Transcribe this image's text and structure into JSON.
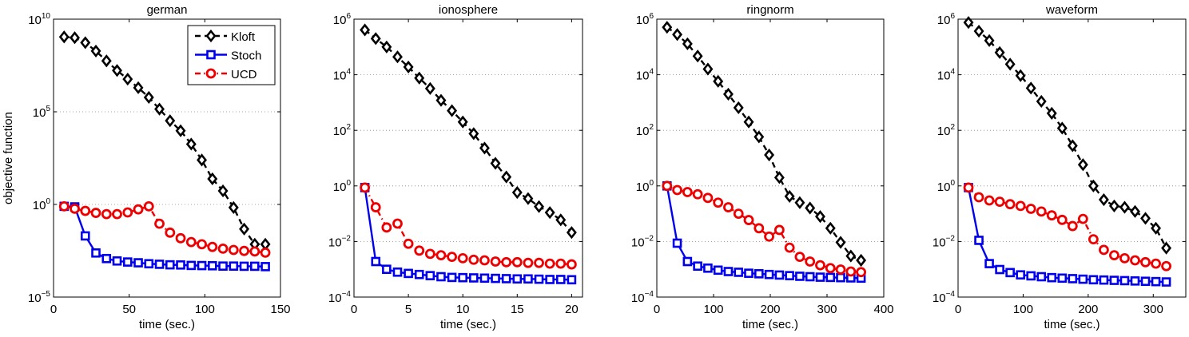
{
  "ylabel": "objective function",
  "legend": {
    "placement": "top-right",
    "entries": [
      "Kloft",
      "Stoch",
      "UCD"
    ]
  },
  "series_style": {
    "Kloft": {
      "color": "#000000",
      "marker": "diamond",
      "line": "dashed"
    },
    "Stoch": {
      "color": "#0000ee",
      "marker": "square",
      "line": "solid"
    },
    "UCD": {
      "color": "#ee0000",
      "marker": "circle",
      "line": "dash-dot"
    }
  },
  "chart_data": [
    {
      "type": "line",
      "title": "german",
      "xlabel": "time (sec.)",
      "ylabel": "objective function",
      "yscale": "log",
      "xlim": [
        0,
        150
      ],
      "ylim": [
        1e-05,
        10000000000.0
      ],
      "grid": "y-dotted",
      "xticks": [
        0,
        50,
        100,
        150
      ],
      "xticklabels": [
        "0",
        "50",
        "100",
        "150"
      ],
      "yticks": [
        1e-05,
        1,
        100000.0,
        10000000000.0
      ],
      "yticklabels": [
        "10^-5",
        "10^0",
        "10^5",
        "10^10"
      ],
      "x": [
        7,
        14,
        21,
        28,
        35,
        42,
        49,
        56,
        63,
        70,
        77,
        84,
        91,
        98,
        105,
        112,
        119,
        126,
        133,
        140
      ],
      "series": [
        {
          "name": "Kloft",
          "values": [
            1100000000.0,
            1000000000.0,
            540000000.0,
            190000000.0,
            56000000.0,
            17000000.0,
            5800000.0,
            2000000.0,
            600000.0,
            140000.0,
            33000.0,
            9500.0,
            1800.0,
            250,
            24,
            5.4,
            0.68,
            0.047,
            0.0071,
            0.0071
          ]
        },
        {
          "name": "Stoch",
          "values": [
            0.79,
            0.74,
            0.02,
            0.0024,
            0.0012,
            0.00089,
            0.00078,
            0.00071,
            0.00063,
            0.00059,
            0.00055,
            0.00054,
            0.00051,
            0.0005,
            0.00049,
            0.00047,
            0.00047,
            0.00046,
            0.00046,
            0.00044
          ]
        },
        {
          "name": "UCD",
          "values": [
            0.79,
            0.59,
            0.45,
            0.35,
            0.3,
            0.3,
            0.37,
            0.54,
            0.79,
            0.091,
            0.03,
            0.015,
            0.0093,
            0.0071,
            0.0051,
            0.0041,
            0.0035,
            0.0031,
            0.0029,
            0.0025
          ]
        }
      ]
    },
    {
      "type": "line",
      "title": "ionosphere",
      "xlabel": "time (sec.)",
      "ylabel": "",
      "yscale": "log",
      "xlim": [
        0,
        21
      ],
      "ylim": [
        0.0001,
        1000000.0
      ],
      "grid": "y-dotted",
      "xticks": [
        0,
        5,
        10,
        15,
        20
      ],
      "xticklabels": [
        "0",
        "5",
        "10",
        "15",
        "20"
      ],
      "yticks": [
        0.0001,
        0.01,
        1,
        100.0,
        10000.0,
        1000000.0
      ],
      "yticklabels": [
        "10^-4",
        "10^-2",
        "10^0",
        "10^2",
        "10^4",
        "10^6"
      ],
      "x": [
        1,
        2,
        3,
        4,
        5,
        6,
        7,
        8,
        9,
        10,
        11,
        12,
        13,
        14,
        15,
        16,
        17,
        18,
        19,
        20
      ],
      "series": [
        {
          "name": "Kloft",
          "values": [
            410000.0,
            200000.0,
            100000.0,
            44000.0,
            19000.0,
            7600.0,
            3200.0,
            1200.0,
            510,
            200,
            76,
            23,
            6.5,
            2.1,
            0.58,
            0.35,
            0.18,
            0.11,
            0.06,
            0.021
          ]
        },
        {
          "name": "Stoch",
          "values": [
            0.87,
            0.0019,
            0.001,
            0.00079,
            0.00071,
            0.00065,
            0.00059,
            0.00054,
            0.00051,
            0.0005,
            0.00049,
            0.00048,
            0.00047,
            0.00046,
            0.00045,
            0.00045,
            0.00044,
            0.00043,
            0.00043,
            0.00042
          ]
        },
        {
          "name": "UCD",
          "values": [
            0.87,
            0.17,
            0.032,
            0.044,
            0.0083,
            0.0047,
            0.0036,
            0.0032,
            0.0028,
            0.0025,
            0.0022,
            0.0021,
            0.0019,
            0.0018,
            0.0018,
            0.0017,
            0.0017,
            0.0016,
            0.0016,
            0.0015
          ]
        }
      ]
    },
    {
      "type": "line",
      "title": "ringnorm",
      "xlabel": "time (sec.)",
      "ylabel": "",
      "yscale": "log",
      "xlim": [
        0,
        400
      ],
      "ylim": [
        0.0001,
        1000000.0
      ],
      "grid": "y-dotted",
      "xticks": [
        0,
        100,
        200,
        300,
        400
      ],
      "xticklabels": [
        "0",
        "100",
        "200",
        "300",
        "400"
      ],
      "yticks": [
        0.0001,
        0.01,
        1,
        100.0,
        10000.0,
        1000000.0
      ],
      "yticklabels": [
        "10^-4",
        "10^-2",
        "10^0",
        "10^2",
        "10^4",
        "10^6"
      ],
      "x": [
        18,
        36,
        54,
        72,
        90,
        108,
        126,
        144,
        162,
        180,
        198,
        216,
        234,
        252,
        270,
        288,
        306,
        324,
        342,
        360
      ],
      "series": [
        {
          "name": "Kloft",
          "values": [
            510000.0,
            280000.0,
            130000.0,
            47000.0,
            16000.0,
            5800.0,
            2000.0,
            650,
            200,
            58,
            13,
            2.0,
            0.42,
            0.25,
            0.16,
            0.079,
            0.03,
            0.0093,
            0.003,
            0.0021
          ]
        },
        {
          "name": "Stoch",
          "values": [
            1.0,
            0.0087,
            0.0019,
            0.0013,
            0.0011,
            0.00093,
            0.00083,
            0.00078,
            0.00072,
            0.00069,
            0.00065,
            0.00062,
            0.00059,
            0.00056,
            0.00054,
            0.00052,
            0.00051,
            0.0005,
            0.00049,
            0.00048
          ]
        },
        {
          "name": "UCD",
          "values": [
            1.0,
            0.71,
            0.6,
            0.5,
            0.37,
            0.25,
            0.17,
            0.1,
            0.059,
            0.03,
            0.015,
            0.026,
            0.006,
            0.0028,
            0.0019,
            0.0014,
            0.0011,
            0.00098,
            0.00083,
            0.00079
          ]
        }
      ]
    },
    {
      "type": "line",
      "title": "waveform",
      "xlabel": "time (sec.)",
      "ylabel": "",
      "yscale": "log",
      "xlim": [
        0,
        350
      ],
      "ylim": [
        0.0001,
        1000000.0
      ],
      "grid": "y-dotted",
      "xticks": [
        0,
        100,
        200,
        300
      ],
      "xticklabels": [
        "0",
        "100",
        "200",
        "300"
      ],
      "yticks": [
        0.0001,
        0.01,
        1,
        100.0,
        10000.0,
        1000000.0
      ],
      "yticklabels": [
        "10^-4",
        "10^-2",
        "10^0",
        "10^2",
        "10^4",
        "10^6"
      ],
      "x": [
        16,
        32,
        48,
        64,
        80,
        96,
        112,
        128,
        144,
        160,
        176,
        192,
        208,
        224,
        240,
        256,
        272,
        288,
        304,
        320
      ],
      "series": [
        {
          "name": "Kloft",
          "values": [
            760000.0,
            370000.0,
            170000.0,
            63000.0,
            24000.0,
            9300.0,
            3300.0,
            1100.0,
            410,
            120,
            28,
            5.8,
            1.0,
            0.32,
            0.19,
            0.17,
            0.12,
            0.068,
            0.03,
            0.0058
          ]
        },
        {
          "name": "Stoch",
          "values": [
            0.87,
            0.011,
            0.0016,
            0.00098,
            0.00076,
            0.00063,
            0.00058,
            0.00054,
            0.0005,
            0.00048,
            0.00046,
            0.00044,
            0.00042,
            0.00041,
            0.0004,
            0.00039,
            0.00038,
            0.00037,
            0.00036,
            0.00035
          ]
        },
        {
          "name": "UCD",
          "values": [
            0.87,
            0.39,
            0.3,
            0.27,
            0.22,
            0.19,
            0.15,
            0.12,
            0.087,
            0.06,
            0.036,
            0.065,
            0.012,
            0.005,
            0.0032,
            0.0025,
            0.0021,
            0.0018,
            0.0016,
            0.0013
          ]
        }
      ]
    }
  ]
}
